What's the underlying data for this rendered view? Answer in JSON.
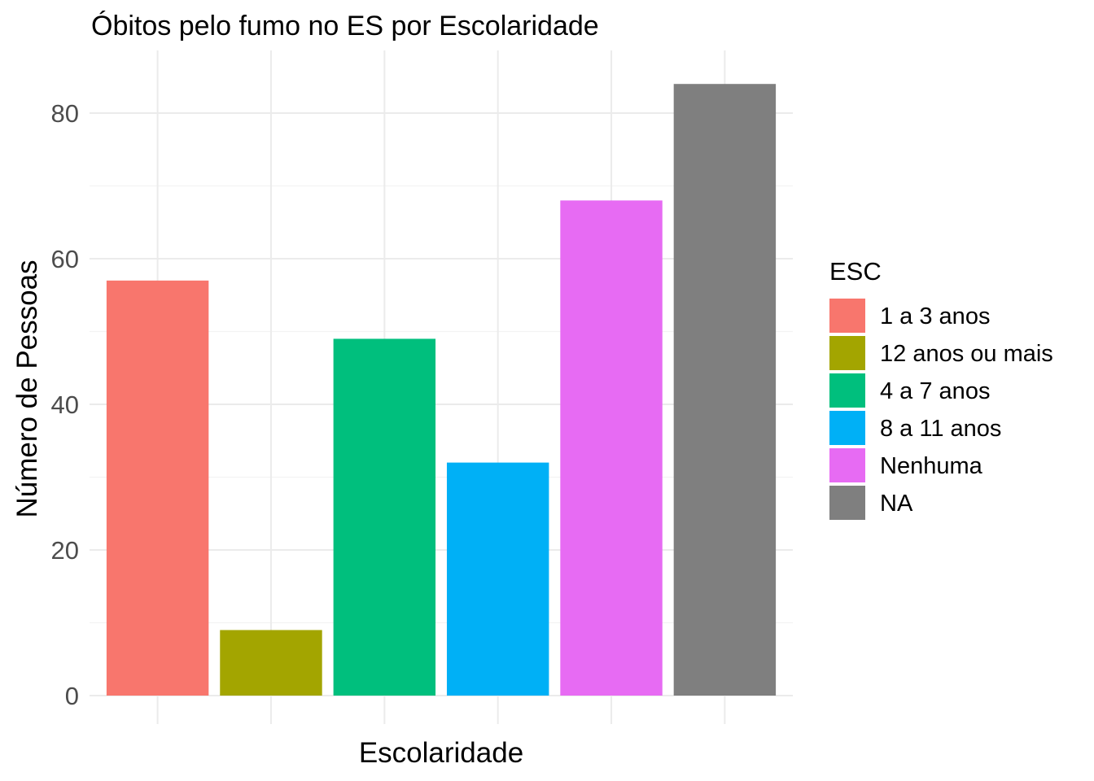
{
  "chart_data": {
    "type": "bar",
    "title": "Óbitos pelo fumo no ES por Escolaridade",
    "xlabel": "Escolaridade",
    "ylabel": "Número de Pessoas",
    "categories": [
      "1 a 3 anos",
      "12 anos ou mais",
      "4 a 7 anos",
      "8 a 11 anos",
      "Nenhuma",
      "NA"
    ],
    "values": [
      57,
      9,
      49,
      32,
      68,
      84
    ],
    "colors": [
      "#F8766D",
      "#A3A500",
      "#00BF7D",
      "#00B0F6",
      "#E76BF3",
      "#7F7F7F"
    ],
    "ylim": [
      0,
      88
    ],
    "yticks": [
      0,
      20,
      40,
      60,
      80
    ],
    "x_tick_labels_shown": false,
    "grid": true,
    "legend": {
      "title": "ESC",
      "position": "right",
      "items": [
        "1 a 3 anos",
        "12 anos ou mais",
        "4 a 7 anos",
        "8 a 11 anos",
        "Nenhuma",
        "NA"
      ]
    }
  }
}
